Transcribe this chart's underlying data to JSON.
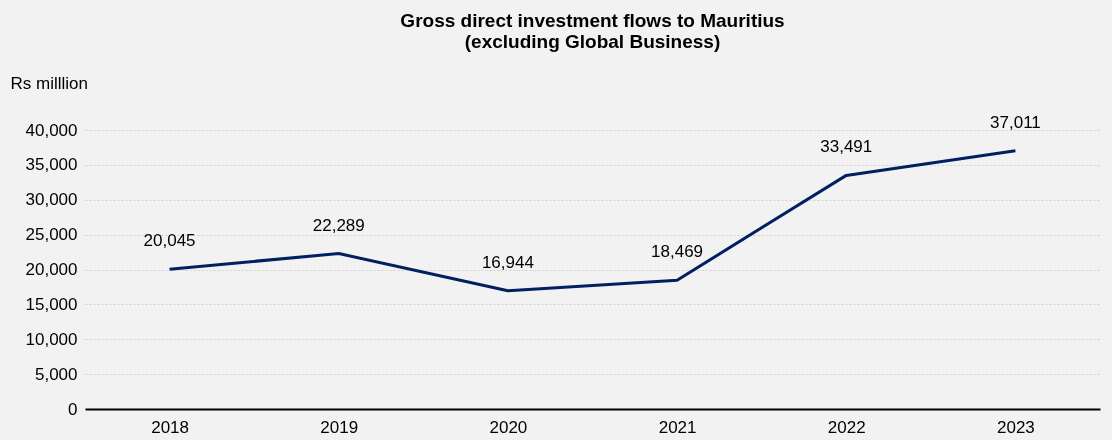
{
  "chart_data": {
    "type": "line",
    "title": "Gross direct investment flows to Mauritius\n(excluding Global Business)",
    "ylabel": "Rs milllion",
    "categories": [
      "2018",
      "2019",
      "2020",
      "2021",
      "2022",
      "2023"
    ],
    "series": [
      {
        "color": "#002060",
        "values": [
          20045,
          22289,
          16944,
          18469,
          33491,
          37011
        ],
        "value_labels": [
          "20,045",
          "22,289",
          "16,944",
          "18,469",
          "33,491",
          "37,011"
        ]
      }
    ],
    "ylim": [
      0,
      40000
    ],
    "yticks": [
      0,
      {
        "value": 5000,
        "label": "5,000"
      },
      {
        "value": 10000,
        "label": "10,000"
      },
      {
        "value": 15000,
        "label": "15,000"
      },
      {
        "value": 20000,
        "label": "20,000"
      },
      {
        "value": 25000,
        "label": "25,000"
      },
      {
        "value": 30000,
        "label": "30,000"
      },
      {
        "value": 35000,
        "label": "35,000"
      },
      {
        "value": 40000,
        "label": "40,000"
      }
    ],
    "grid": "y",
    "legend": false,
    "marker": "none",
    "line_style": "solid"
  }
}
